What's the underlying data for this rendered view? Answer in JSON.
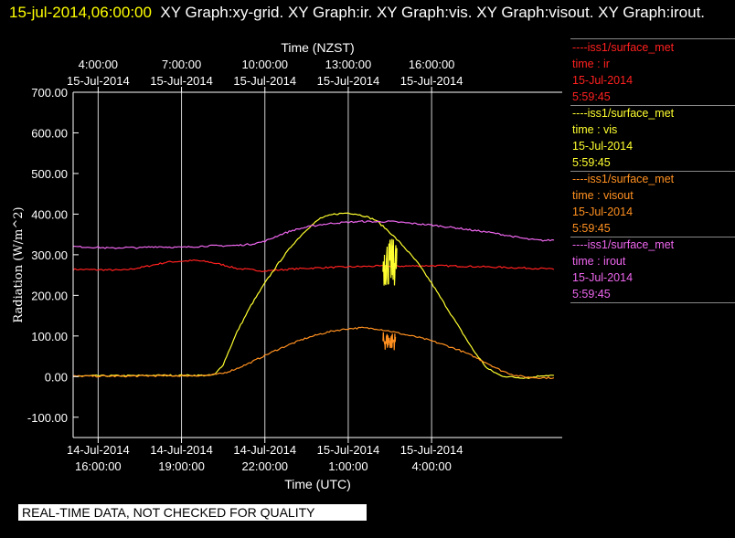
{
  "title": {
    "timestamp": "15-jul-2014,06:00:00",
    "graphs": "XY Graph:xy-grid.  XY Graph:ir.  XY Graph:vis.  XY Graph:visout.  XY Graph:irout."
  },
  "banner": "REAL-TIME DATA, NOT CHECKED FOR QUALITY",
  "colors": {
    "ir": "#ff2020",
    "vis": "#ffff30",
    "visout": "#ff9020",
    "irout": "#ee66ee"
  },
  "legend": [
    {
      "source": "----iss1/surface_met",
      "field": "time : ir",
      "date": "15-Jul-2014",
      "time": "5:59:45",
      "color": "#ff2020"
    },
    {
      "source": "----iss1/surface_met",
      "field": "time : vis",
      "date": "15-Jul-2014",
      "time": "5:59:45",
      "color": "#ffff30"
    },
    {
      "source": "----iss1/surface_met",
      "field": "time : visout",
      "date": "15-Jul-2014",
      "time": "5:59:45",
      "color": "#ff9020"
    },
    {
      "source": "----iss1/surface_met",
      "field": "time : irout",
      "date": "15-Jul-2014",
      "time": "5:59:45",
      "color": "#ee66ee"
    }
  ],
  "chart_data": {
    "type": "line",
    "xlabel": "Time (UTC)",
    "x2label": "Time (NZST)",
    "ylabel": "Radiation (W/m^2)",
    "xunit": "hours UTC from 14-Jul-2014 16:00:00",
    "xlim": [
      -0.9,
      16.7
    ],
    "ylim": [
      -150,
      700
    ],
    "grid": "vertical",
    "yticks": [
      "700.00",
      "600.00",
      "500.00",
      "400.00",
      "300.00",
      "200.00",
      "100.00",
      "0.00",
      "-100.00"
    ],
    "ytick_values": [
      700,
      600,
      500,
      400,
      300,
      200,
      100,
      0,
      -100
    ],
    "x_ticks": [
      {
        "v": 0,
        "date": "14-Jul-2014",
        "time": "16:00:00"
      },
      {
        "v": 3,
        "date": "14-Jul-2014",
        "time": "19:00:00"
      },
      {
        "v": 6,
        "date": "14-Jul-2014",
        "time": "22:00:00"
      },
      {
        "v": 9,
        "date": "15-Jul-2014",
        "time": "1:00:00"
      },
      {
        "v": 12,
        "date": "15-Jul-2014",
        "time": "4:00:00"
      }
    ],
    "x2_ticks": [
      {
        "v": 0,
        "time": "4:00:00",
        "date": "15-Jul-2014"
      },
      {
        "v": 3,
        "time": "7:00:00",
        "date": "15-Jul-2014"
      },
      {
        "v": 6,
        "time": "10:00:00",
        "date": "15-Jul-2014"
      },
      {
        "v": 9,
        "time": "13:00:00",
        "date": "15-Jul-2014"
      },
      {
        "v": 12,
        "time": "16:00:00",
        "date": "15-Jul-2014"
      }
    ],
    "series": [
      {
        "key": "ir",
        "x": [
          -0.9,
          0,
          0.9,
          1.5,
          2.5,
          3.5,
          4,
          4.5,
          5,
          6,
          7,
          8,
          9,
          10,
          11,
          12,
          13,
          14,
          15,
          16,
          16.4
        ],
        "y": [
          264,
          263,
          262,
          268,
          282,
          286,
          282,
          275,
          266,
          260,
          265,
          268,
          270,
          272,
          272,
          273,
          272,
          270,
          268,
          266,
          264
        ]
      },
      {
        "key": "vis",
        "x": [
          -0.9,
          0,
          1,
          2,
          3,
          4,
          4.2,
          4.5,
          5,
          5.5,
          6,
          6.5,
          7,
          7.5,
          8,
          8.5,
          9,
          9.3,
          9.6,
          10,
          10.5,
          11,
          11.5,
          12,
          12.5,
          13,
          13.5,
          14,
          14.5,
          15,
          15.5,
          16,
          16.4
        ],
        "y": [
          1,
          2,
          2,
          3,
          3,
          3,
          5,
          30,
          110,
          175,
          230,
          280,
          325,
          362,
          390,
          400,
          403,
          400,
          395,
          385,
          355,
          320,
          280,
          230,
          175,
          120,
          65,
          20,
          2,
          -2,
          -3,
          3,
          3
        ]
      },
      {
        "key": "visout",
        "x": [
          -0.9,
          0,
          1,
          2,
          3,
          4,
          4.5,
          5,
          5.5,
          6,
          6.5,
          7,
          7.5,
          8,
          8.5,
          9,
          9.5,
          10,
          10.5,
          11,
          11.5,
          12,
          12.5,
          13,
          13.5,
          14,
          14.5,
          15,
          15.5,
          16,
          16.4
        ],
        "y": [
          1,
          1,
          1,
          2,
          2,
          3,
          8,
          20,
          35,
          52,
          68,
          82,
          95,
          105,
          113,
          118,
          120,
          118,
          112,
          104,
          97,
          88,
          77,
          65,
          50,
          33,
          15,
          3,
          -2,
          -3,
          -3
        ]
      },
      {
        "key": "irout",
        "x": [
          -0.9,
          0,
          0.5,
          1,
          1.5,
          2,
          2.5,
          3,
          3.5,
          4,
          4.5,
          5,
          5.5,
          6,
          6.5,
          7,
          7.5,
          8,
          8.5,
          9,
          9.5,
          10,
          10.5,
          11,
          11.5,
          12,
          12.5,
          13,
          13.5,
          14,
          14.5,
          15,
          15.5,
          16,
          16.4
        ],
        "y": [
          320,
          318,
          316,
          318,
          317,
          320,
          319,
          318,
          320,
          322,
          322,
          323,
          326,
          333,
          348,
          360,
          368,
          374,
          378,
          380,
          382,
          381,
          382,
          379,
          376,
          373,
          369,
          365,
          360,
          356,
          350,
          344,
          338,
          335,
          336
        ]
      }
    ],
    "noise_events": [
      {
        "key": "vis",
        "x_start": 10.25,
        "x_end": 10.75,
        "low": 220,
        "high": 340
      },
      {
        "key": "visout",
        "x_start": 10.25,
        "x_end": 10.7,
        "low": 65,
        "high": 110
      }
    ]
  }
}
